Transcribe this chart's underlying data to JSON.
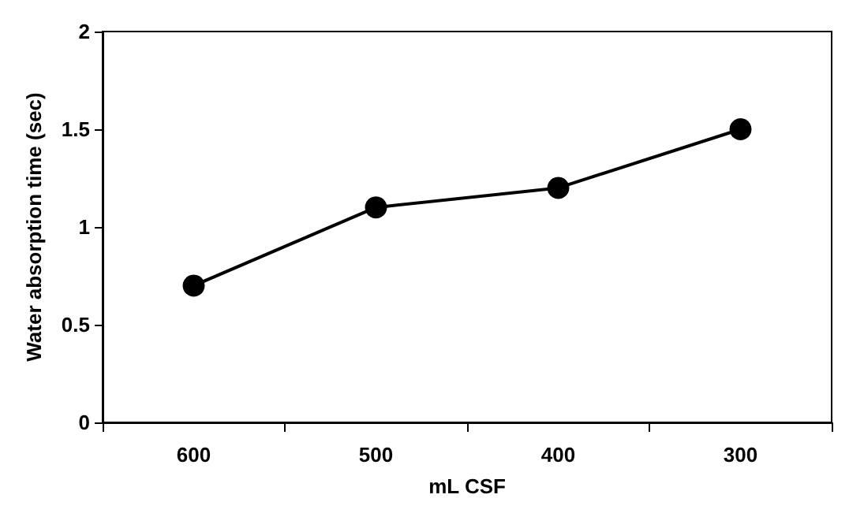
{
  "chart_data": {
    "type": "line",
    "xlabel": "mL CSF",
    "ylabel": "Water absorption time (sec)",
    "categories": [
      "600",
      "500",
      "400",
      "300"
    ],
    "series": [
      {
        "color": "#000000",
        "values": [
          0.7,
          1.1,
          1.2,
          1.5
        ]
      }
    ],
    "ylim": [
      0,
      2
    ],
    "yticks": [
      0,
      0.5,
      1,
      1.5,
      2
    ],
    "grid": false,
    "marker": "circle",
    "line_style": "solid"
  }
}
